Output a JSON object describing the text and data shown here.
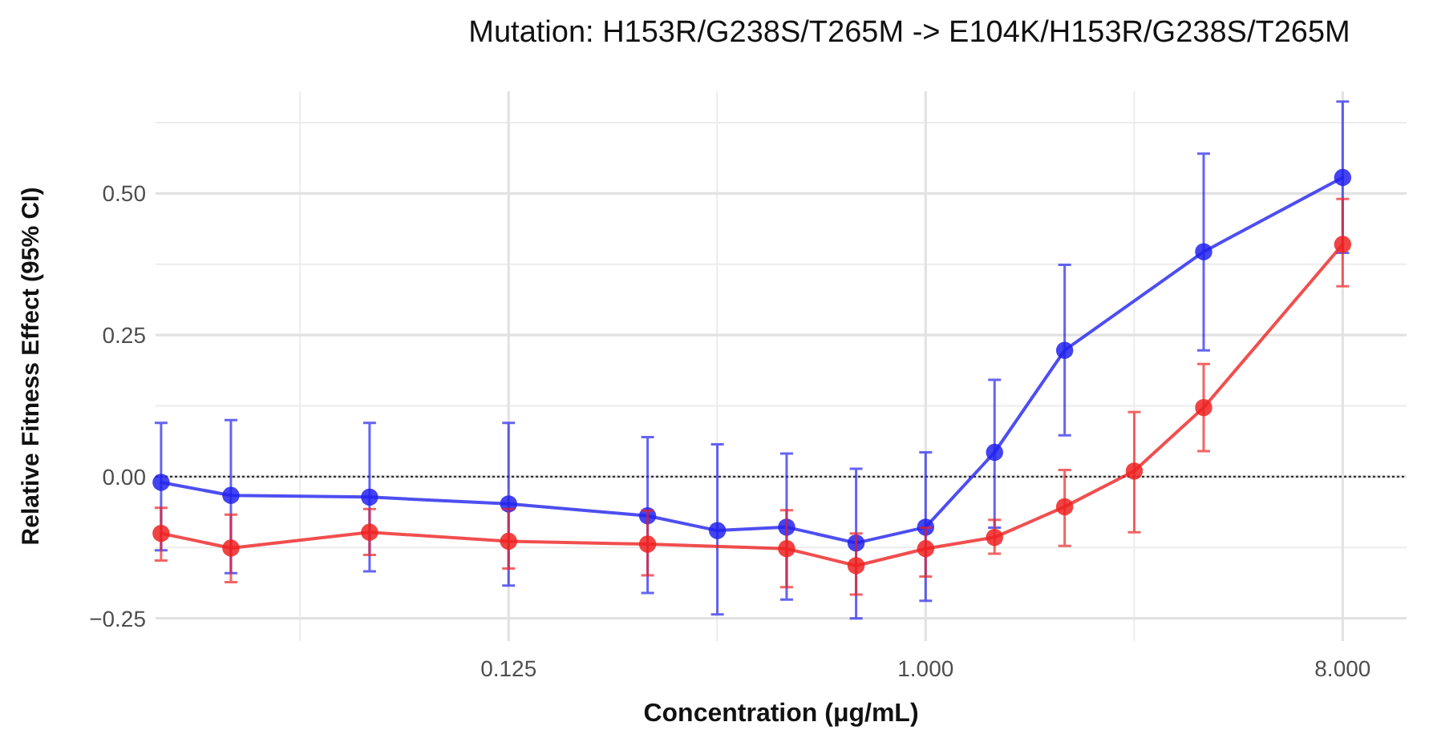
{
  "chart_data": {
    "type": "line",
    "title": "Mutation: H153R/G238S/T265M -> E104K/H153R/G238S/T265M",
    "xlabel": "Concentration (μg/mL)",
    "ylabel": "Relative Fitness Effect (95% CI)",
    "log": "x",
    "grid": true,
    "marker": "circle",
    "line_style": "solid",
    "xlim": [
      0.0215,
      11
    ],
    "xticks": [
      {
        "value": 0.125,
        "label": "0.125"
      },
      {
        "value": 1,
        "label": "1.000"
      },
      {
        "value": 8,
        "label": "8.000"
      }
    ],
    "ylim": [
      -0.29,
      0.68
    ],
    "yticks": [
      {
        "value": -0.25,
        "label": "−0.25"
      },
      {
        "value": 0,
        "label": "0.00"
      },
      {
        "value": 0.25,
        "label": "0.25"
      },
      {
        "value": 0.5,
        "label": "0.50"
      }
    ],
    "ref_lines": [
      {
        "axis": "y",
        "value": 0,
        "color": "#333333",
        "line_style": "dotted"
      }
    ],
    "series": [
      {
        "color": "#2222ee",
        "x": [
          0.0221,
          0.0313,
          0.0625,
          0.125,
          0.25,
          0.354,
          0.5,
          0.707,
          1,
          1.41,
          2,
          4,
          8
        ],
        "values": [
          -0.01,
          -0.033,
          -0.036,
          -0.048,
          -0.069,
          -0.095,
          -0.089,
          -0.117,
          -0.089,
          0.043,
          0.223,
          0.397,
          0.528
        ],
        "errors": [
          [
            -0.13,
            0.095
          ],
          [
            -0.17,
            0.1
          ],
          [
            -0.167,
            0.095
          ],
          [
            -0.192,
            0.095
          ],
          [
            -0.205,
            0.07
          ],
          [
            -0.243,
            0.057
          ],
          [
            -0.217,
            0.041
          ],
          [
            -0.25,
            0.014
          ],
          [
            -0.219,
            0.043
          ],
          [
            -0.09,
            0.171
          ],
          [
            0.073,
            0.374
          ],
          [
            0.223,
            0.57
          ],
          [
            0.395,
            0.662
          ]
        ]
      },
      {
        "color": "#ee2222",
        "x": [
          0.0221,
          0.0313,
          0.0625,
          0.125,
          0.25,
          0.5,
          0.707,
          1,
          1.41,
          2,
          2.83,
          4,
          8
        ],
        "values": [
          -0.1,
          -0.126,
          -0.098,
          -0.114,
          -0.119,
          -0.127,
          -0.157,
          -0.127,
          -0.107,
          -0.053,
          0.01,
          0.122,
          0.41
        ],
        "errors": [
          [
            -0.148,
            -0.055
          ],
          [
            -0.186,
            -0.067
          ],
          [
            -0.138,
            -0.057
          ],
          [
            -0.162,
            -0.057
          ],
          [
            -0.174,
            -0.06
          ],
          [
            -0.195,
            -0.059
          ],
          [
            -0.208,
            -0.1
          ],
          [
            -0.176,
            -0.09
          ],
          [
            -0.136,
            -0.076
          ],
          [
            -0.122,
            0.012
          ],
          [
            -0.098,
            0.114
          ],
          [
            0.045,
            0.199
          ],
          [
            0.336,
            0.49
          ]
        ]
      }
    ]
  }
}
